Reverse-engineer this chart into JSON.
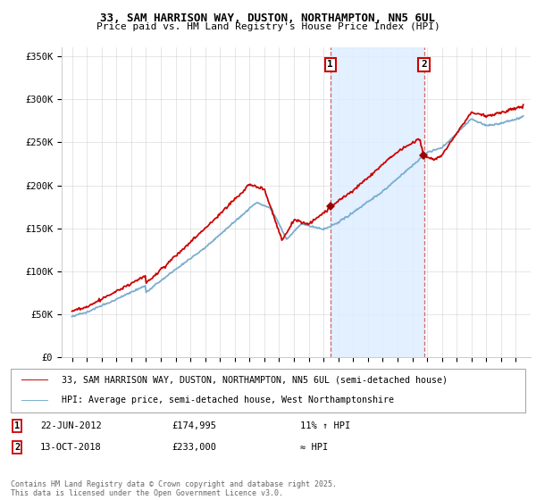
{
  "title_line1": "33, SAM HARRISON WAY, DUSTON, NORTHAMPTON, NN5 6UL",
  "title_line2": "Price paid vs. HM Land Registry's House Price Index (HPI)",
  "legend_line1": "33, SAM HARRISON WAY, DUSTON, NORTHAMPTON, NN5 6UL (semi-detached house)",
  "legend_line2": "HPI: Average price, semi-detached house, West Northamptonshire",
  "footer": "Contains HM Land Registry data © Crown copyright and database right 2025.\nThis data is licensed under the Open Government Licence v3.0.",
  "annotation1_date": "22-JUN-2012",
  "annotation1_price": "£174,995",
  "annotation1_note": "11% ↑ HPI",
  "annotation2_date": "13-OCT-2018",
  "annotation2_price": "£233,000",
  "annotation2_note": "≈ HPI",
  "red_color": "#cc0000",
  "blue_color": "#7aadce",
  "shading_color": "#ddeeff",
  "dashed_color": "#cc4444",
  "background_color": "#ffffff",
  "grid_color": "#cccccc",
  "ylim_min": 0,
  "ylim_max": 360000,
  "sale1_year": 2012.46,
  "sale2_year": 2018.79,
  "sale1_price": 174995,
  "sale2_price": 233000
}
